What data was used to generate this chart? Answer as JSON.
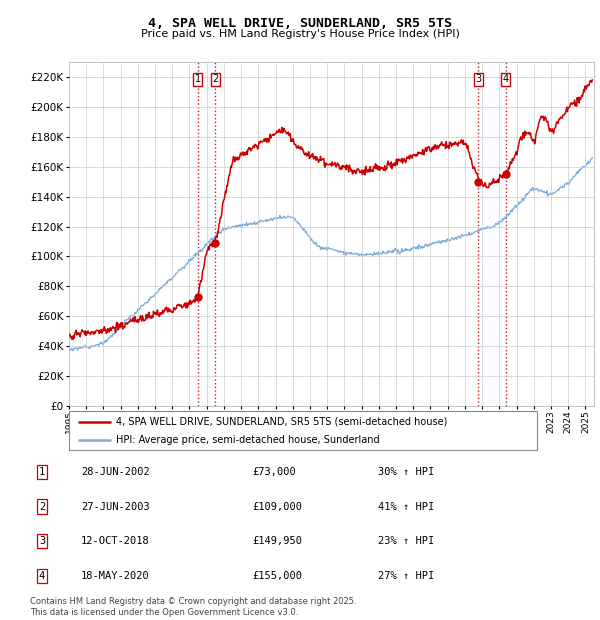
{
  "title": "4, SPA WELL DRIVE, SUNDERLAND, SR5 5TS",
  "subtitle": "Price paid vs. HM Land Registry's House Price Index (HPI)",
  "ylim": [
    0,
    230000
  ],
  "yticks": [
    0,
    20000,
    40000,
    60000,
    80000,
    100000,
    120000,
    140000,
    160000,
    180000,
    200000,
    220000
  ],
  "xlim_start": 1995.0,
  "xlim_end": 2025.5,
  "sale_dates": [
    2002.49,
    2003.49,
    2018.78,
    2020.37
  ],
  "sale_prices": [
    73000,
    109000,
    149950,
    155000
  ],
  "sale_labels": [
    "1",
    "2",
    "3",
    "4"
  ],
  "vline_color": "#cc0000",
  "sale_box_color": "#cc0000",
  "legend_entries": [
    "4, SPA WELL DRIVE, SUNDERLAND, SR5 5TS (semi-detached house)",
    "HPI: Average price, semi-detached house, Sunderland"
  ],
  "table_rows": [
    [
      "1",
      "28-JUN-2002",
      "£73,000",
      "30% ↑ HPI"
    ],
    [
      "2",
      "27-JUN-2003",
      "£109,000",
      "41% ↑ HPI"
    ],
    [
      "3",
      "12-OCT-2018",
      "£149,950",
      "23% ↑ HPI"
    ],
    [
      "4",
      "18-MAY-2020",
      "£155,000",
      "27% ↑ HPI"
    ]
  ],
  "footer": "Contains HM Land Registry data © Crown copyright and database right 2025.\nThis data is licensed under the Open Government Licence v3.0.",
  "hpi_color": "#7aaddb",
  "price_color": "#cc0000",
  "background_color": "#ffffff",
  "grid_color": "#cccccc",
  "span_color": "#ddeeff"
}
